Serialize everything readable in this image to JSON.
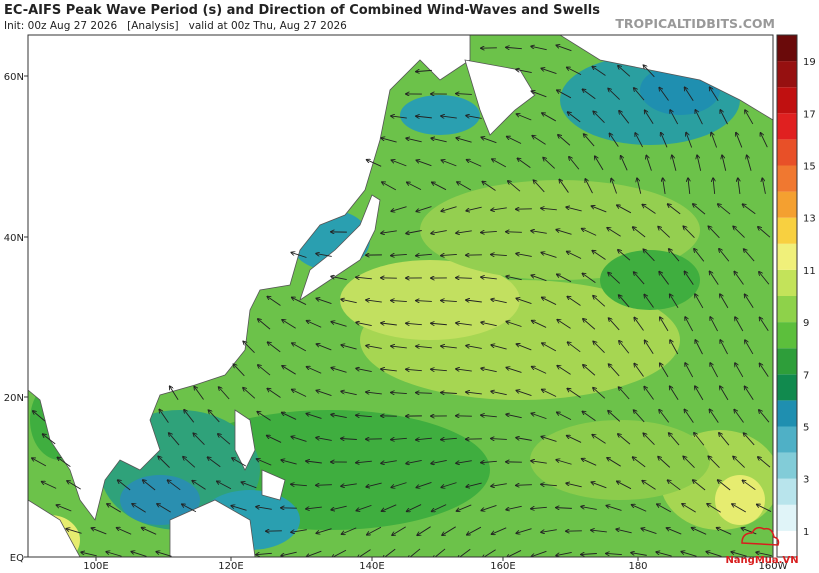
{
  "header": {
    "title": "EC-AIFS Peak Wave Period (s) and Direction of Combined Wind-Waves and Swells",
    "subtitle": "Init: 00z Aug 27 2026   [Analysis]   valid at 00z Thu, Aug 27 2026",
    "site": "TROPICALTIDBITS.COM"
  },
  "map": {
    "lat_labels": [
      "60N",
      "40N",
      "20N",
      "EQ"
    ],
    "lon_labels": [
      "100E",
      "120E",
      "140E",
      "160E",
      "180",
      "160W"
    ]
  },
  "colorbar": {
    "labels": [
      "1",
      "3",
      "5",
      "7",
      "9",
      "11",
      "13",
      "15",
      "17",
      "19"
    ]
  },
  "watermark": "NangMua.VN"
}
